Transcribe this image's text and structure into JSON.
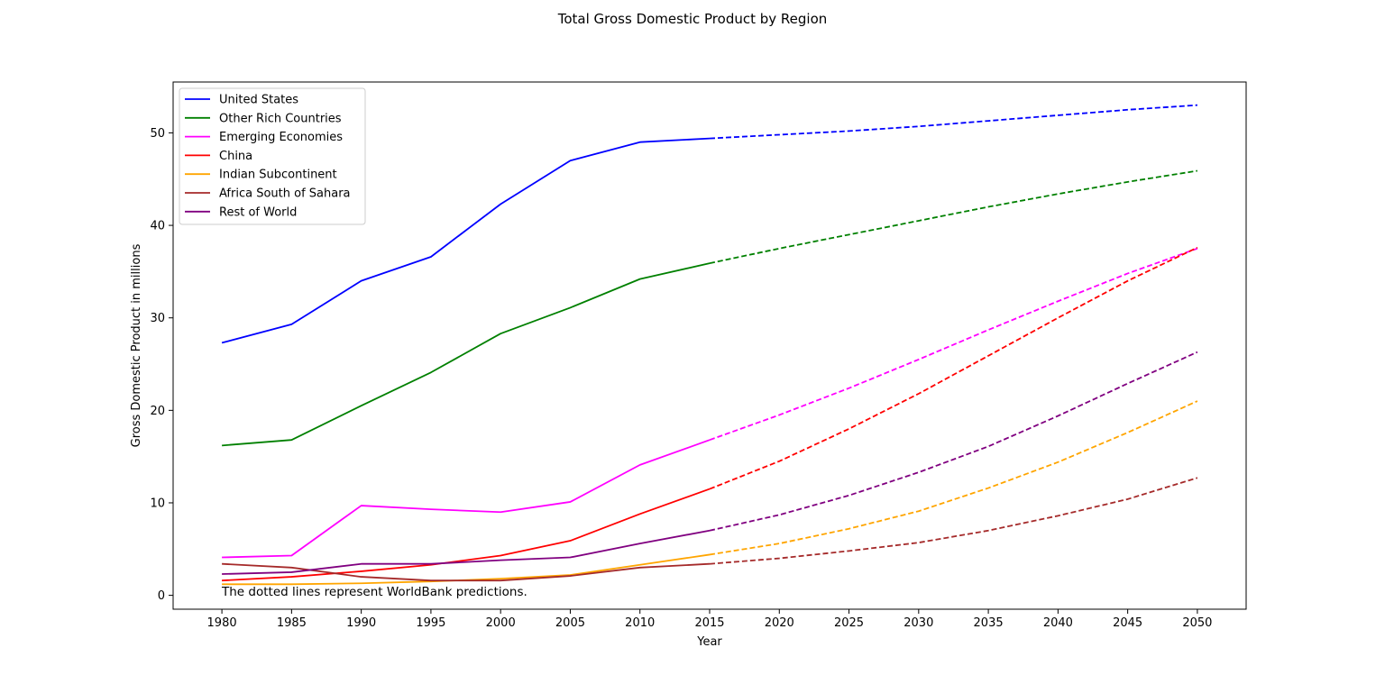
{
  "chart_data": {
    "type": "line",
    "title": "Total Gross Domestic Product by Region",
    "xlabel": "Year",
    "ylabel": "Gross Domestic Product in millions",
    "annotation": "The dotted lines represent WorldBank predictions.",
    "xlim": [
      1976.5,
      2053.5
    ],
    "ylim": [
      -1.5,
      55.5
    ],
    "x_ticks": [
      1980,
      1985,
      1990,
      1995,
      2000,
      2005,
      2010,
      2015,
      2020,
      2025,
      2030,
      2035,
      2040,
      2045,
      2050
    ],
    "y_ticks": [
      0,
      10,
      20,
      30,
      40,
      50
    ],
    "legend_position": "top-left",
    "grid": false,
    "x_actual": [
      1980,
      1985,
      1990,
      1995,
      2000,
      2005,
      2010,
      2015
    ],
    "x_predicted": [
      2015,
      2020,
      2025,
      2030,
      2035,
      2040,
      2045,
      2050
    ],
    "series": [
      {
        "name": "United States",
        "color": "#0000ff",
        "actual": [
          27.3,
          29.3,
          34.0,
          36.6,
          42.3,
          47.0,
          49.0,
          49.4
        ],
        "predicted": [
          49.4,
          49.8,
          50.2,
          50.7,
          51.3,
          51.9,
          52.5,
          53.0
        ]
      },
      {
        "name": "Other Rich Countries",
        "color": "#008000",
        "actual": [
          16.2,
          16.8,
          20.5,
          24.1,
          28.3,
          31.1,
          34.2,
          35.9
        ],
        "predicted": [
          35.9,
          37.5,
          39.0,
          40.5,
          42.0,
          43.4,
          44.7,
          45.9
        ]
      },
      {
        "name": "Emerging Economies",
        "color": "#ff00ff",
        "actual": [
          4.1,
          4.3,
          9.7,
          9.3,
          9.0,
          10.1,
          14.1,
          16.8
        ],
        "predicted": [
          16.8,
          19.5,
          22.4,
          25.5,
          28.7,
          31.8,
          34.8,
          37.5
        ]
      },
      {
        "name": "China",
        "color": "#ff0000",
        "actual": [
          1.6,
          2.0,
          2.6,
          3.3,
          4.3,
          5.9,
          8.8,
          11.5
        ],
        "predicted": [
          11.5,
          14.5,
          18.0,
          21.8,
          25.9,
          30.0,
          34.0,
          37.6
        ]
      },
      {
        "name": "Indian Subcontinent",
        "color": "#ffa500",
        "actual": [
          1.2,
          1.2,
          1.3,
          1.5,
          1.8,
          2.2,
          3.3,
          4.4
        ],
        "predicted": [
          4.4,
          5.6,
          7.2,
          9.1,
          11.6,
          14.4,
          17.6,
          21.0
        ]
      },
      {
        "name": "Africa South of Sahara",
        "color": "#a52a2a",
        "actual": [
          3.4,
          3.0,
          2.0,
          1.6,
          1.6,
          2.1,
          3.0,
          3.4
        ],
        "predicted": [
          3.4,
          4.0,
          4.8,
          5.7,
          7.0,
          8.6,
          10.4,
          12.7
        ]
      },
      {
        "name": "Rest of World",
        "color": "#800080",
        "actual": [
          2.3,
          2.5,
          3.4,
          3.4,
          3.8,
          4.1,
          5.6,
          7.0
        ],
        "predicted": [
          7.0,
          8.7,
          10.8,
          13.3,
          16.1,
          19.4,
          22.9,
          26.3
        ]
      }
    ]
  }
}
